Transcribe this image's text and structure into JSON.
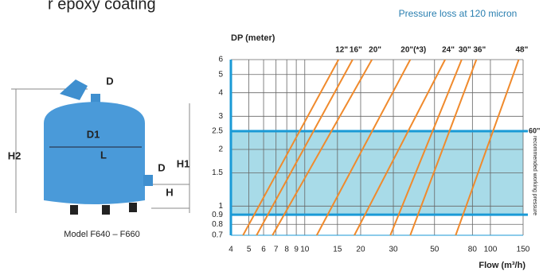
{
  "header": {
    "cut_text": "r epoxy coating"
  },
  "diagram": {
    "labels": [
      "D",
      "D1",
      "L",
      "D",
      "H2",
      "H1",
      "H"
    ],
    "caption": "Model F640 – F660"
  },
  "chart_data": {
    "type": "line",
    "title": "Pressure loss at 120 micron",
    "ylabel": "DP (meter)",
    "xlabel": "Flow (m³/h)",
    "xscale": "log",
    "yscale": "log",
    "xlim": [
      4,
      150
    ],
    "ylim": [
      0.7,
      6
    ],
    "xticks": [
      4,
      5,
      6,
      7,
      8,
      9,
      10,
      15,
      20,
      30,
      50,
      80,
      100,
      150
    ],
    "yticks": [
      0.7,
      0.8,
      0.9,
      1,
      1.5,
      2,
      2.5,
      3,
      4,
      5,
      6
    ],
    "grid": true,
    "band": [
      0.9,
      2.5
    ],
    "band_color": "#a8dbe8",
    "axis_color": "#1a9ad6",
    "annotations": [
      "60''",
      "recommended working pressure"
    ],
    "series": [
      {
        "name": "12\"",
        "color": "#f08a2c",
        "x": [
          4.65,
          15.2
        ],
        "values": [
          0.7,
          6
        ]
      },
      {
        "name": "16\"",
        "color": "#f08a2c",
        "x": [
          5.5,
          18.1
        ],
        "values": [
          0.7,
          6
        ]
      },
      {
        "name": "20\"",
        "color": "#f08a2c",
        "x": [
          6.7,
          23
        ],
        "values": [
          0.7,
          6
        ]
      },
      {
        "name": "20\"(*3)",
        "color": "#f08a2c",
        "x": [
          11.6,
          37
        ],
        "values": [
          0.7,
          6
        ]
      },
      {
        "name": "24\"",
        "color": "#f08a2c",
        "x": [
          18.5,
          57
        ],
        "values": [
          0.7,
          6
        ]
      },
      {
        "name": "30\"",
        "color": "#f08a2c",
        "x": [
          28.9,
          70
        ],
        "values": [
          0.7,
          6
        ]
      },
      {
        "name": "36\"",
        "color": "#f08a2c",
        "x": [
          37,
          84
        ],
        "values": [
          0.7,
          6
        ]
      },
      {
        "name": "48\"",
        "color": "#f08a2c",
        "x": [
          65,
          142
        ],
        "values": [
          0.7,
          6
        ]
      }
    ]
  }
}
